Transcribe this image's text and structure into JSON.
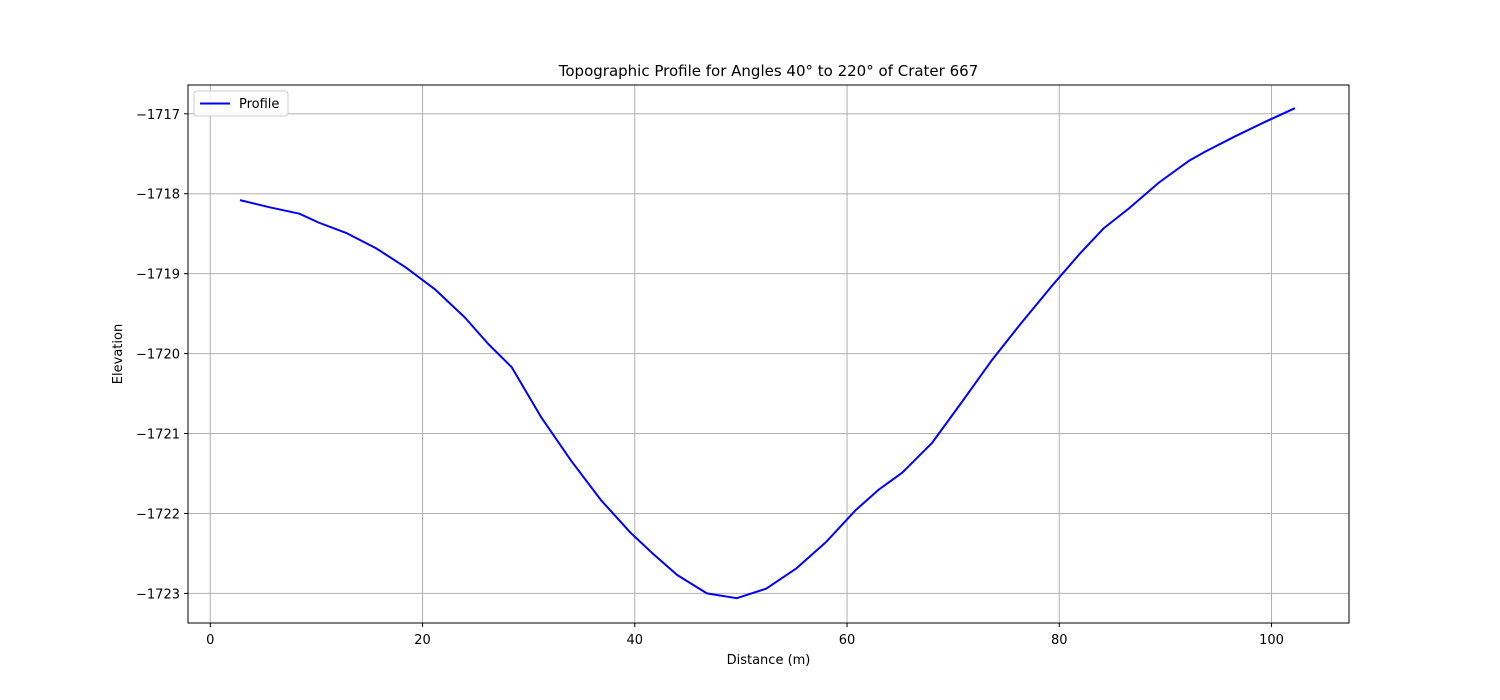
{
  "chart_data": {
    "type": "line",
    "title": "Topographic Profile for Angles 40° to 220° of Crater 667",
    "xlabel": "Distance (m)",
    "ylabel": "Elevation",
    "xlim": [
      -2.1,
      107.3
    ],
    "ylim": [
      -1723.37,
      -1716.64
    ],
    "xticks": [
      0,
      20,
      40,
      60,
      80,
      100
    ],
    "yticks": [
      -1723,
      -1722,
      -1721,
      -1720,
      -1719,
      -1718,
      -1717
    ],
    "xtick_labels": [
      "0",
      "20",
      "40",
      "60",
      "80",
      "100"
    ],
    "ytick_labels": [
      "−1723",
      "−1722",
      "−1721",
      "−1720",
      "−1719",
      "−1718",
      "−1717"
    ],
    "grid": true,
    "legend_position": "top-left",
    "series": [
      {
        "name": "Profile",
        "color": "#0000ff",
        "x": [
          2.8,
          5.6,
          8.4,
          10.2,
          12.8,
          15.6,
          18.4,
          21.2,
          24.0,
          26.2,
          28.4,
          31.2,
          34.0,
          36.8,
          39.6,
          41.6,
          44.0,
          46.8,
          49.6,
          52.4,
          55.2,
          58.0,
          60.8,
          63.0,
          65.2,
          68.0,
          70.8,
          73.6,
          76.4,
          79.2,
          82.0,
          84.2,
          86.6,
          89.4,
          92.2,
          93.8,
          96.6,
          99.4,
          102.2
        ],
        "y": [
          -1718.08,
          -1718.17,
          -1718.25,
          -1718.36,
          -1718.49,
          -1718.68,
          -1718.92,
          -1719.2,
          -1719.55,
          -1719.88,
          -1720.17,
          -1720.8,
          -1721.34,
          -1721.83,
          -1722.24,
          -1722.49,
          -1722.77,
          -1723.0,
          -1723.06,
          -1722.94,
          -1722.69,
          -1722.36,
          -1721.96,
          -1721.7,
          -1721.49,
          -1721.12,
          -1720.61,
          -1720.09,
          -1719.62,
          -1719.17,
          -1718.74,
          -1718.43,
          -1718.18,
          -1717.86,
          -1717.59,
          -1717.47,
          -1717.28,
          -1717.1,
          -1716.93
        ]
      }
    ]
  }
}
